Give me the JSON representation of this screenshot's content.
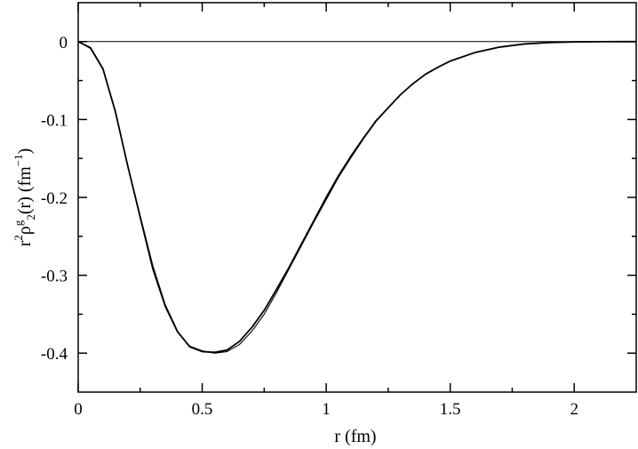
{
  "chart_data": {
    "type": "line",
    "xlabel": "r (fm)",
    "ylabel": {
      "parts": [
        "r",
        "2",
        "ρ",
        "g",
        "2",
        "(r) (fm",
        "−1",
        ")"
      ]
    },
    "xlim": [
      0,
      2.25
    ],
    "ylim": [
      -0.45,
      0.05
    ],
    "x_ticks": [
      0,
      0.5,
      1,
      1.5,
      2
    ],
    "x_tick_labels": [
      "0",
      "0.5",
      "1",
      "1.5",
      "2"
    ],
    "y_ticks": [
      0,
      -0.1,
      -0.2,
      -0.3,
      -0.4
    ],
    "y_tick_labels": [
      "0",
      "-0.1",
      "-0.2",
      "-0.3",
      "-0.4"
    ],
    "grid": false,
    "reference_line_y": 0,
    "line_color": "#000000",
    "series": [
      {
        "x": [
          0.0,
          0.05,
          0.1,
          0.15,
          0.2,
          0.25,
          0.3,
          0.35,
          0.4,
          0.45,
          0.5,
          0.55,
          0.6,
          0.65,
          0.7,
          0.75,
          0.8,
          0.85,
          0.9,
          0.95,
          1.0,
          1.05,
          1.1,
          1.15,
          1.2,
          1.25,
          1.3,
          1.35,
          1.4,
          1.45,
          1.5,
          1.6,
          1.7,
          1.8,
          1.9,
          2.0,
          2.1,
          2.2,
          2.25
        ],
        "values": [
          0.0,
          -0.008,
          -0.035,
          -0.09,
          -0.16,
          -0.225,
          -0.288,
          -0.338,
          -0.372,
          -0.392,
          -0.398,
          -0.399,
          -0.396,
          -0.385,
          -0.367,
          -0.345,
          -0.318,
          -0.29,
          -0.26,
          -0.23,
          -0.2,
          -0.172,
          -0.147,
          -0.124,
          -0.102,
          -0.085,
          -0.068,
          -0.054,
          -0.042,
          -0.033,
          -0.025,
          -0.014,
          -0.007,
          -0.003,
          -0.0012,
          -0.0004,
          -0.0001,
          0.0,
          0.0
        ]
      },
      {
        "x": [
          0.0,
          0.05,
          0.1,
          0.15,
          0.2,
          0.25,
          0.3,
          0.35,
          0.4,
          0.45,
          0.5,
          0.55,
          0.6,
          0.65,
          0.7,
          0.75,
          0.8,
          0.85,
          0.9,
          0.95,
          1.0,
          1.05,
          1.1,
          1.15,
          1.2,
          1.25,
          1.3,
          1.35,
          1.4,
          1.45,
          1.5,
          1.6,
          1.7,
          1.8,
          1.9,
          2.0,
          2.1,
          2.2,
          2.25
        ],
        "values": [
          0.0,
          -0.009,
          -0.036,
          -0.091,
          -0.159,
          -0.227,
          -0.292,
          -0.34,
          -0.373,
          -0.391,
          -0.397,
          -0.4,
          -0.398,
          -0.389,
          -0.372,
          -0.35,
          -0.322,
          -0.292,
          -0.262,
          -0.232,
          -0.203,
          -0.174,
          -0.149,
          -0.125,
          -0.103,
          -0.085,
          -0.068,
          -0.054,
          -0.042,
          -0.033,
          -0.025,
          -0.014,
          -0.007,
          -0.003,
          -0.0012,
          -0.0004,
          -0.0001,
          0.0,
          0.0
        ]
      }
    ]
  }
}
